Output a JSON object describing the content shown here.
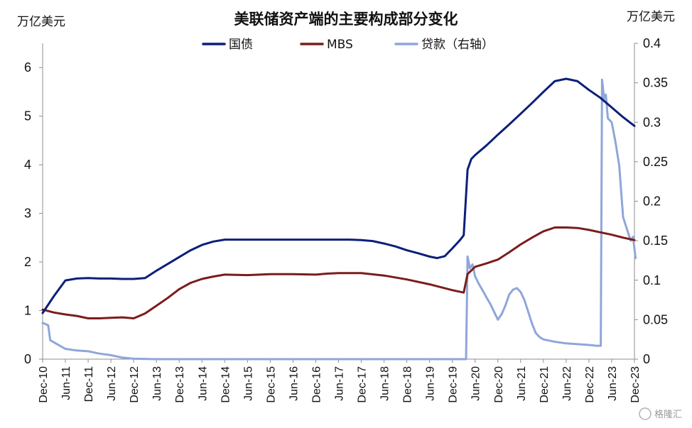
{
  "chart_data": {
    "type": "line",
    "title": "美联储资产端的主要构成部分变化",
    "ylabel_left": "万亿美元",
    "ylabel_right": "万亿美元",
    "ylim_left": [
      0,
      6.5
    ],
    "yticks_left": [
      "0",
      "1",
      "2",
      "3",
      "4",
      "5",
      "6"
    ],
    "ylim_right": [
      0,
      0.4
    ],
    "yticks_right": [
      "0",
      "0.05",
      "0.1",
      "0.15",
      "0.2",
      "0.25",
      "0.3",
      "0.35",
      "0.4"
    ],
    "xlim": [
      "2010-12",
      "2023-12"
    ],
    "xticks": [
      "Dec-10",
      "Jun-11",
      "Dec-11",
      "Jun-12",
      "Dec-12",
      "Jun-13",
      "Dec-13",
      "Jun-14",
      "Dec-14",
      "Jun-15",
      "Dec-15",
      "Jun-16",
      "Dec-16",
      "Jun-17",
      "Dec-17",
      "Jun-18",
      "Dec-18",
      "Jun-19",
      "Dec-19",
      "Jun-20",
      "Dec-20",
      "Jun-21",
      "Dec-21",
      "Jun-22",
      "Dec-22",
      "Jun-23",
      "Dec-23"
    ],
    "legend_position": "top",
    "grid": false,
    "series": [
      {
        "name": "国债",
        "axis": "left",
        "color": "#0b1f7a",
        "points": [
          [
            "2010-12-01",
            0.95
          ],
          [
            "2011-03-01",
            1.3
          ],
          [
            "2011-06-01",
            1.62
          ],
          [
            "2011-09-01",
            1.66
          ],
          [
            "2011-12-01",
            1.67
          ],
          [
            "2012-03-01",
            1.66
          ],
          [
            "2012-06-01",
            1.66
          ],
          [
            "2012-09-01",
            1.65
          ],
          [
            "2012-12-01",
            1.65
          ],
          [
            "2013-03-01",
            1.67
          ],
          [
            "2013-06-01",
            1.82
          ],
          [
            "2013-09-01",
            1.96
          ],
          [
            "2013-12-01",
            2.1
          ],
          [
            "2014-03-01",
            2.24
          ],
          [
            "2014-06-01",
            2.35
          ],
          [
            "2014-09-01",
            2.42
          ],
          [
            "2014-12-01",
            2.46
          ],
          [
            "2015-06-01",
            2.46
          ],
          [
            "2015-12-01",
            2.46
          ],
          [
            "2016-06-01",
            2.46
          ],
          [
            "2016-12-01",
            2.46
          ],
          [
            "2017-06-01",
            2.46
          ],
          [
            "2017-09-01",
            2.46
          ],
          [
            "2017-12-01",
            2.45
          ],
          [
            "2018-03-01",
            2.43
          ],
          [
            "2018-06-01",
            2.38
          ],
          [
            "2018-09-01",
            2.32
          ],
          [
            "2018-12-01",
            2.24
          ],
          [
            "2019-03-01",
            2.18
          ],
          [
            "2019-06-01",
            2.11
          ],
          [
            "2019-08-01",
            2.08
          ],
          [
            "2019-10-01",
            2.12
          ],
          [
            "2019-12-01",
            2.28
          ],
          [
            "2020-02-01",
            2.45
          ],
          [
            "2020-03-01",
            2.55
          ],
          [
            "2020-04-01",
            3.9
          ],
          [
            "2020-05-01",
            4.12
          ],
          [
            "2020-06-01",
            4.2
          ],
          [
            "2020-09-01",
            4.4
          ],
          [
            "2020-12-01",
            4.62
          ],
          [
            "2021-03-01",
            4.83
          ],
          [
            "2021-06-01",
            5.05
          ],
          [
            "2021-09-01",
            5.27
          ],
          [
            "2021-12-01",
            5.5
          ],
          [
            "2022-03-01",
            5.72
          ],
          [
            "2022-06-01",
            5.77
          ],
          [
            "2022-09-01",
            5.72
          ],
          [
            "2022-12-01",
            5.54
          ],
          [
            "2023-03-01",
            5.38
          ],
          [
            "2023-06-01",
            5.18
          ],
          [
            "2023-09-01",
            4.98
          ],
          [
            "2023-12-01",
            4.8
          ]
        ]
      },
      {
        "name": "MBS",
        "axis": "left",
        "color": "#7b1c1c",
        "points": [
          [
            "2010-12-01",
            1.02
          ],
          [
            "2011-03-01",
            0.96
          ],
          [
            "2011-06-01",
            0.92
          ],
          [
            "2011-09-01",
            0.89
          ],
          [
            "2011-12-01",
            0.84
          ],
          [
            "2012-03-01",
            0.84
          ],
          [
            "2012-06-01",
            0.85
          ],
          [
            "2012-09-01",
            0.86
          ],
          [
            "2012-12-01",
            0.84
          ],
          [
            "2013-03-01",
            0.94
          ],
          [
            "2013-06-01",
            1.1
          ],
          [
            "2013-09-01",
            1.26
          ],
          [
            "2013-12-01",
            1.44
          ],
          [
            "2014-03-01",
            1.57
          ],
          [
            "2014-06-01",
            1.65
          ],
          [
            "2014-09-01",
            1.7
          ],
          [
            "2014-12-01",
            1.74
          ],
          [
            "2015-06-01",
            1.73
          ],
          [
            "2015-12-01",
            1.75
          ],
          [
            "2016-06-01",
            1.75
          ],
          [
            "2016-12-01",
            1.74
          ],
          [
            "2017-03-01",
            1.76
          ],
          [
            "2017-06-01",
            1.77
          ],
          [
            "2017-12-01",
            1.77
          ],
          [
            "2018-06-01",
            1.72
          ],
          [
            "2018-12-01",
            1.64
          ],
          [
            "2019-06-01",
            1.54
          ],
          [
            "2019-12-01",
            1.42
          ],
          [
            "2020-03-01",
            1.37
          ],
          [
            "2020-04-01",
            1.75
          ],
          [
            "2020-06-01",
            1.9
          ],
          [
            "2020-09-01",
            1.97
          ],
          [
            "2020-12-01",
            2.05
          ],
          [
            "2021-03-01",
            2.2
          ],
          [
            "2021-06-01",
            2.36
          ],
          [
            "2021-09-01",
            2.5
          ],
          [
            "2021-12-01",
            2.63
          ],
          [
            "2022-03-01",
            2.71
          ],
          [
            "2022-06-01",
            2.71
          ],
          [
            "2022-09-01",
            2.7
          ],
          [
            "2022-12-01",
            2.66
          ],
          [
            "2023-03-01",
            2.61
          ],
          [
            "2023-06-01",
            2.56
          ],
          [
            "2023-09-01",
            2.5
          ],
          [
            "2023-12-01",
            2.45
          ]
        ]
      },
      {
        "name": "贷款（右轴）",
        "axis": "right",
        "color": "#8fa6d9",
        "points": [
          [
            "2010-12-01",
            0.046
          ],
          [
            "2011-01-15",
            0.043
          ],
          [
            "2011-02-01",
            0.024
          ],
          [
            "2011-03-15",
            0.02
          ],
          [
            "2011-06-01",
            0.013
          ],
          [
            "2011-09-01",
            0.011
          ],
          [
            "2011-12-01",
            0.01
          ],
          [
            "2012-03-01",
            0.007
          ],
          [
            "2012-06-01",
            0.005
          ],
          [
            "2012-09-01",
            0.002
          ],
          [
            "2012-12-01",
            0.0005
          ],
          [
            "2013-06-01",
            0.0
          ],
          [
            "2014-01-01",
            0.0
          ],
          [
            "2015-01-01",
            0.0
          ],
          [
            "2016-01-01",
            0.0
          ],
          [
            "2017-01-01",
            0.0
          ],
          [
            "2018-01-01",
            0.0
          ],
          [
            "2019-01-01",
            0.0
          ],
          [
            "2020-02-15",
            0.0
          ],
          [
            "2020-03-20",
            0.0
          ],
          [
            "2020-04-01",
            0.13
          ],
          [
            "2020-04-20",
            0.115
          ],
          [
            "2020-05-10",
            0.12
          ],
          [
            "2020-06-01",
            0.105
          ],
          [
            "2020-07-01",
            0.095
          ],
          [
            "2020-08-01",
            0.087
          ],
          [
            "2020-09-01",
            0.078
          ],
          [
            "2020-10-01",
            0.07
          ],
          [
            "2020-11-01",
            0.06
          ],
          [
            "2020-12-01",
            0.05
          ],
          [
            "2021-01-01",
            0.057
          ],
          [
            "2021-02-01",
            0.068
          ],
          [
            "2021-03-01",
            0.082
          ],
          [
            "2021-04-01",
            0.088
          ],
          [
            "2021-05-01",
            0.09
          ],
          [
            "2021-06-01",
            0.085
          ],
          [
            "2021-07-01",
            0.075
          ],
          [
            "2021-08-01",
            0.06
          ],
          [
            "2021-09-01",
            0.045
          ],
          [
            "2021-10-01",
            0.033
          ],
          [
            "2021-11-01",
            0.028
          ],
          [
            "2021-12-01",
            0.025
          ],
          [
            "2022-03-01",
            0.022
          ],
          [
            "2022-06-01",
            0.02
          ],
          [
            "2022-09-01",
            0.019
          ],
          [
            "2022-12-01",
            0.018
          ],
          [
            "2023-02-01",
            0.017
          ],
          [
            "2023-03-05",
            0.017
          ],
          [
            "2023-03-15",
            0.354
          ],
          [
            "2023-04-01",
            0.33
          ],
          [
            "2023-04-15",
            0.335
          ],
          [
            "2023-05-01",
            0.305
          ],
          [
            "2023-06-01",
            0.3
          ],
          [
            "2023-07-01",
            0.275
          ],
          [
            "2023-08-01",
            0.245
          ],
          [
            "2023-09-01",
            0.18
          ],
          [
            "2023-10-01",
            0.165
          ],
          [
            "2023-11-01",
            0.15
          ],
          [
            "2023-11-20",
            0.155
          ],
          [
            "2023-12-10",
            0.128
          ]
        ]
      }
    ]
  },
  "watermark": "格隆汇"
}
